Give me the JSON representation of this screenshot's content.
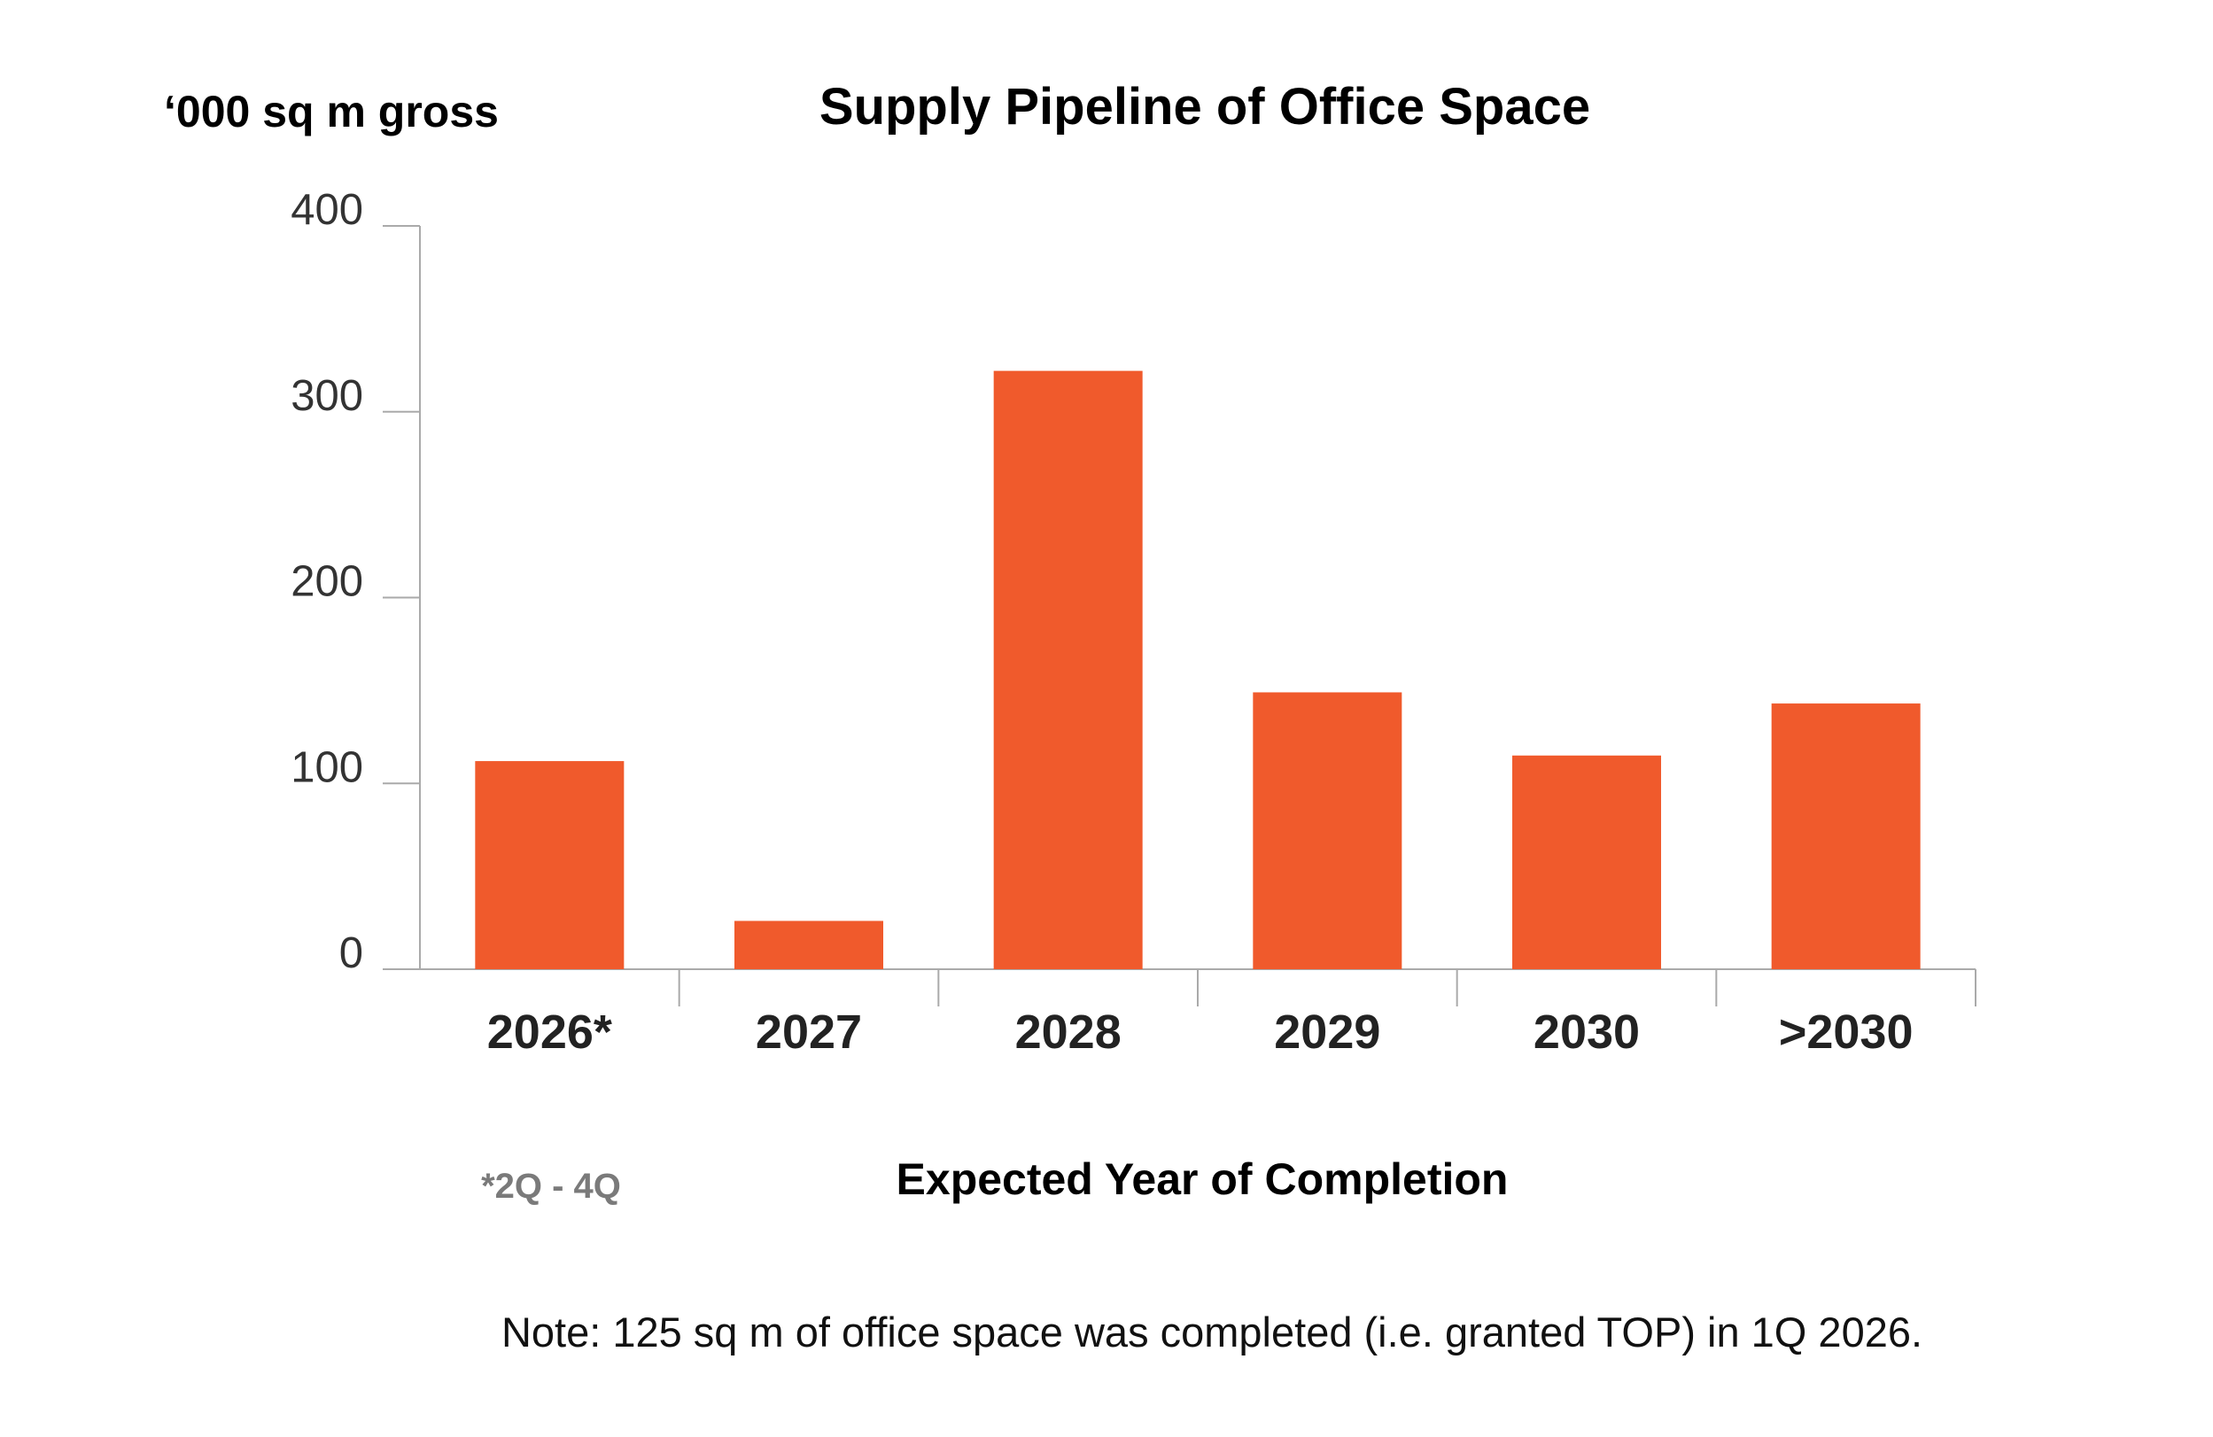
{
  "colors": {
    "bar": "#f05a2c",
    "axis": "#aaaaaa",
    "text": "#1a1a1a"
  },
  "chart_data": {
    "type": "bar",
    "title": "Supply Pipeline of Office Space",
    "ylabel": "‘000 sq m gross",
    "xlabel": "Expected Year of Completion",
    "categories": [
      "2026*",
      "2027",
      "2028",
      "2029",
      "2030",
      ">2030"
    ],
    "values": [
      112,
      26,
      322,
      149,
      115,
      143
    ],
    "ylim": [
      0,
      400
    ],
    "yticks": [
      "0",
      "100",
      "200",
      "300",
      "400"
    ],
    "grid": false,
    "legend": "none",
    "footnote": "*2Q - 4Q",
    "note": "Note: 125 sq m of office space was completed (i.e. granted TOP) in 1Q 2026."
  }
}
